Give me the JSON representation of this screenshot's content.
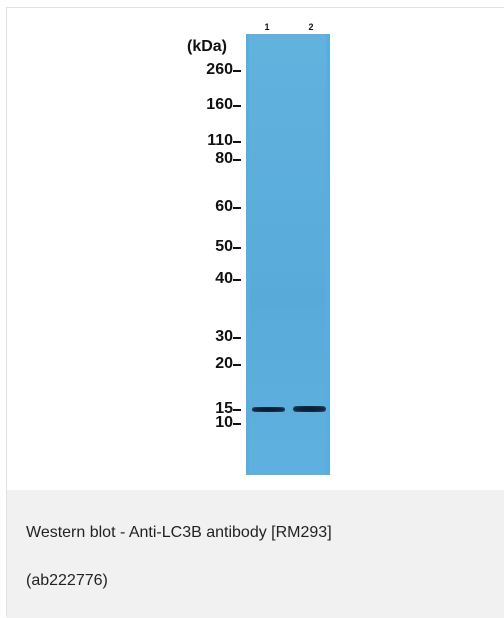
{
  "figure": {
    "unit_label": "(kDa)",
    "lanes": [
      "1",
      "2"
    ],
    "markers": [
      "260",
      "160",
      "110",
      "80",
      "60",
      "50",
      "40",
      "30",
      "20",
      "15",
      "10"
    ],
    "band_marker": "15"
  },
  "caption": {
    "line1": "Western blot - Anti-LC3B antibody [RM293]",
    "line2": "(ab222776)"
  },
  "colors": {
    "membrane": "#5aaedd",
    "caption_bg": "#f1f1f1",
    "band": "#0f2740"
  }
}
